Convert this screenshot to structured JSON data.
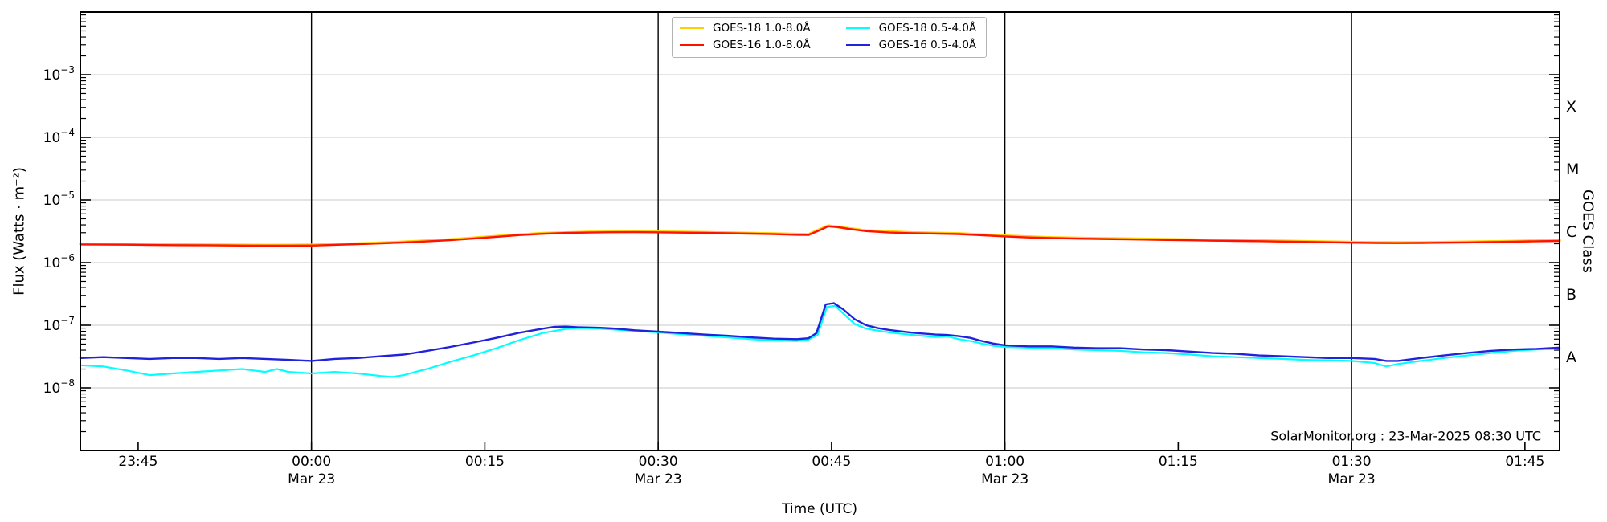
{
  "watermark": {
    "text": "SolarMonitor.org : 23-Mar-2025 08:30 UTC"
  },
  "legend": {
    "items": [
      {
        "label": "GOES-18 1.0-8.0Å",
        "color": "#ffd000"
      },
      {
        "label": "GOES-16 1.0-8.0Å",
        "color": "#ff1100"
      },
      {
        "label": "GOES-18 0.5-4.0Å",
        "color": "#00ffff"
      },
      {
        "label": "GOES-16 0.5-4.0Å",
        "color": "#2222dd"
      }
    ]
  },
  "chart_data": {
    "type": "line",
    "title": "",
    "xlabel": "Time (UTC)",
    "ylabel": "Flux (Watts · m⁻²)",
    "ylabel_right": "GOES Class",
    "x_axis": {
      "unit": "minutes from 23:40 UTC, 22-Mar-2025",
      "range": [
        0,
        128
      ],
      "ticks": [
        {
          "minute": 5,
          "label": "23:45"
        },
        {
          "minute": 20,
          "label": "00:00",
          "date": "Mar 23"
        },
        {
          "minute": 35,
          "label": "00:15"
        },
        {
          "minute": 50,
          "label": "00:30",
          "date": "Mar 23"
        },
        {
          "minute": 65,
          "label": "00:45"
        },
        {
          "minute": 80,
          "label": "01:00",
          "date": "Mar 23"
        },
        {
          "minute": 95,
          "label": "01:15"
        },
        {
          "minute": 110,
          "label": "01:30",
          "date": "Mar 23"
        },
        {
          "minute": 125,
          "label": "01:45"
        }
      ],
      "date_vlines_minutes": [
        20,
        50,
        80,
        110
      ]
    },
    "y_axis": {
      "scale": "log",
      "top": 0.01,
      "bottom": 1e-09,
      "ticks": [
        {
          "exp": -3,
          "label": "10⁻³"
        },
        {
          "exp": -4,
          "label": "10⁻⁴"
        },
        {
          "exp": -5,
          "label": "10⁻⁵"
        },
        {
          "exp": -6,
          "label": "10⁻⁶"
        },
        {
          "exp": -7,
          "label": "10⁻⁷"
        },
        {
          "exp": -8,
          "label": "10⁻⁸"
        }
      ]
    },
    "goes_class": {
      "labels": [
        "X",
        "M",
        "C",
        "B",
        "A"
      ],
      "log_centers": [
        -3.5,
        -4.5,
        -5.5,
        -6.5,
        -7.5
      ]
    },
    "grid": {
      "color": "#c9c9c9",
      "decades": [
        -3,
        -4,
        -5,
        -6,
        -7,
        -8
      ]
    },
    "series": [
      {
        "id": "goes18-long",
        "name": "GOES-18 1.0-8.0Å",
        "color": "#ffd000",
        "width": 3.4,
        "points": [
          [
            0,
            1.99e-06
          ],
          [
            4,
            1.97e-06
          ],
          [
            8,
            1.94e-06
          ],
          [
            12,
            1.92e-06
          ],
          [
            16,
            1.9e-06
          ],
          [
            20,
            1.91e-06
          ],
          [
            24,
            2.01e-06
          ],
          [
            28,
            2.14e-06
          ],
          [
            32,
            2.33e-06
          ],
          [
            36,
            2.63e-06
          ],
          [
            40,
            2.94e-06
          ],
          [
            44,
            3.08e-06
          ],
          [
            48,
            3.12e-06
          ],
          [
            52,
            3.07e-06
          ],
          [
            56,
            3e-06
          ],
          [
            60,
            2.9e-06
          ],
          [
            63,
            2.82e-06
          ],
          [
            64.7,
            3.88e-06
          ],
          [
            66.5,
            3.52e-06
          ],
          [
            68,
            3.24e-06
          ],
          [
            72,
            3.01e-06
          ],
          [
            76,
            2.91e-06
          ],
          [
            80,
            2.67e-06
          ],
          [
            84,
            2.51e-06
          ],
          [
            88,
            2.44e-06
          ],
          [
            92,
            2.38e-06
          ],
          [
            96,
            2.32e-06
          ],
          [
            100,
            2.27e-06
          ],
          [
            104,
            2.21e-06
          ],
          [
            108,
            2.15e-06
          ],
          [
            112,
            2.1e-06
          ],
          [
            116,
            2.1e-06
          ],
          [
            120,
            2.14e-06
          ],
          [
            124,
            2.2e-06
          ],
          [
            128,
            2.27e-06
          ]
        ]
      },
      {
        "id": "goes18-short",
        "name": "GOES-18 0.5-4.0Å",
        "color": "#00ffff",
        "width": 2.2,
        "points": [
          [
            0,
            2.3e-08
          ],
          [
            2,
            2.2e-08
          ],
          [
            4,
            1.9e-08
          ],
          [
            6,
            1.6e-08
          ],
          [
            8,
            1.7e-08
          ],
          [
            10,
            1.8e-08
          ],
          [
            12,
            1.9e-08
          ],
          [
            14,
            2e-08
          ],
          [
            15,
            1.9e-08
          ],
          [
            16,
            1.8e-08
          ],
          [
            17,
            2e-08
          ],
          [
            18,
            1.8e-08
          ],
          [
            20,
            1.7e-08
          ],
          [
            22,
            1.8e-08
          ],
          [
            24,
            1.7e-08
          ],
          [
            26,
            1.55e-08
          ],
          [
            27,
            1.5e-08
          ],
          [
            28,
            1.6e-08
          ],
          [
            29,
            1.8e-08
          ],
          [
            30,
            2e-08
          ],
          [
            32,
            2.6e-08
          ],
          [
            34,
            3.3e-08
          ],
          [
            36,
            4.3e-08
          ],
          [
            38,
            5.8e-08
          ],
          [
            40,
            7.5e-08
          ],
          [
            42,
            8.7e-08
          ],
          [
            43,
            9e-08
          ],
          [
            44,
            8.9e-08
          ],
          [
            45,
            8.8e-08
          ],
          [
            46,
            8.6e-08
          ],
          [
            48,
            8.1e-08
          ],
          [
            50,
            7.7e-08
          ],
          [
            52,
            7.2e-08
          ],
          [
            54,
            6.8e-08
          ],
          [
            56,
            6.4e-08
          ],
          [
            58,
            6e-08
          ],
          [
            60,
            5.7e-08
          ],
          [
            62,
            5.6e-08
          ],
          [
            63,
            5.9e-08
          ],
          [
            63.8,
            7e-08
          ],
          [
            64.6,
            1.95e-07
          ],
          [
            65.3,
            2.05e-07
          ],
          [
            66,
            1.55e-07
          ],
          [
            67,
            1.05e-07
          ],
          [
            68,
            8.8e-08
          ],
          [
            69,
            8.2e-08
          ],
          [
            70,
            7.7e-08
          ],
          [
            72,
            7e-08
          ],
          [
            74,
            6.5e-08
          ],
          [
            75,
            6.7e-08
          ],
          [
            76,
            6e-08
          ],
          [
            77,
            5.6e-08
          ],
          [
            78,
            5.1e-08
          ],
          [
            79,
            4.7e-08
          ],
          [
            80,
            4.5e-08
          ],
          [
            82,
            4.4e-08
          ],
          [
            84,
            4.3e-08
          ],
          [
            86,
            4.1e-08
          ],
          [
            88,
            4e-08
          ],
          [
            90,
            3.9e-08
          ],
          [
            92,
            3.7e-08
          ],
          [
            94,
            3.6e-08
          ],
          [
            96,
            3.4e-08
          ],
          [
            98,
            3.2e-08
          ],
          [
            100,
            3.1e-08
          ],
          [
            102,
            3e-08
          ],
          [
            104,
            2.9e-08
          ],
          [
            106,
            2.8e-08
          ],
          [
            108,
            2.75e-08
          ],
          [
            110,
            2.7e-08
          ],
          [
            112,
            2.5e-08
          ],
          [
            113,
            2.2e-08
          ],
          [
            114,
            2.4e-08
          ],
          [
            116,
            2.7e-08
          ],
          [
            118,
            3e-08
          ],
          [
            120,
            3.3e-08
          ],
          [
            122,
            3.6e-08
          ],
          [
            124,
            3.9e-08
          ],
          [
            126,
            4.1e-08
          ],
          [
            128,
            4.2e-08
          ]
        ]
      },
      {
        "id": "goes16-long",
        "name": "GOES-16 1.0-8.0Å",
        "color": "#ff1100",
        "width": 2.4,
        "points": [
          [
            0,
            1.95e-06
          ],
          [
            2,
            1.94e-06
          ],
          [
            4,
            1.93e-06
          ],
          [
            6,
            1.91e-06
          ],
          [
            8,
            1.9e-06
          ],
          [
            10,
            1.89e-06
          ],
          [
            12,
            1.88e-06
          ],
          [
            14,
            1.87e-06
          ],
          [
            16,
            1.86e-06
          ],
          [
            18,
            1.86e-06
          ],
          [
            20,
            1.87e-06
          ],
          [
            22,
            1.92e-06
          ],
          [
            24,
            1.97e-06
          ],
          [
            26,
            2.03e-06
          ],
          [
            28,
            2.1e-06
          ],
          [
            30,
            2.18e-06
          ],
          [
            32,
            2.28e-06
          ],
          [
            34,
            2.42e-06
          ],
          [
            36,
            2.58e-06
          ],
          [
            38,
            2.75e-06
          ],
          [
            40,
            2.88e-06
          ],
          [
            42,
            2.97e-06
          ],
          [
            44,
            3.02e-06
          ],
          [
            46,
            3.05e-06
          ],
          [
            48,
            3.06e-06
          ],
          [
            50,
            3.04e-06
          ],
          [
            52,
            3.01e-06
          ],
          [
            54,
            2.98e-06
          ],
          [
            56,
            2.94e-06
          ],
          [
            58,
            2.89e-06
          ],
          [
            60,
            2.84e-06
          ],
          [
            62,
            2.78e-06
          ],
          [
            63,
            2.76e-06
          ],
          [
            64,
            3.3e-06
          ],
          [
            64.7,
            3.8e-06
          ],
          [
            65.5,
            3.7e-06
          ],
          [
            66.5,
            3.45e-06
          ],
          [
            68,
            3.18e-06
          ],
          [
            70,
            3.02e-06
          ],
          [
            72,
            2.95e-06
          ],
          [
            74,
            2.9e-06
          ],
          [
            76,
            2.85e-06
          ],
          [
            78,
            2.74e-06
          ],
          [
            80,
            2.62e-06
          ],
          [
            82,
            2.52e-06
          ],
          [
            84,
            2.46e-06
          ],
          [
            86,
            2.42e-06
          ],
          [
            88,
            2.39e-06
          ],
          [
            90,
            2.36e-06
          ],
          [
            92,
            2.33e-06
          ],
          [
            94,
            2.3e-06
          ],
          [
            96,
            2.27e-06
          ],
          [
            98,
            2.24e-06
          ],
          [
            100,
            2.22e-06
          ],
          [
            102,
            2.2e-06
          ],
          [
            104,
            2.17e-06
          ],
          [
            106,
            2.14e-06
          ],
          [
            108,
            2.11e-06
          ],
          [
            110,
            2.08e-06
          ],
          [
            112,
            2.06e-06
          ],
          [
            114,
            2.05e-06
          ],
          [
            116,
            2.06e-06
          ],
          [
            118,
            2.08e-06
          ],
          [
            120,
            2.1e-06
          ],
          [
            122,
            2.13e-06
          ],
          [
            124,
            2.16e-06
          ],
          [
            126,
            2.19e-06
          ],
          [
            128,
            2.22e-06
          ]
        ]
      },
      {
        "id": "goes16-short",
        "name": "GOES-16 0.5-4.0Å",
        "color": "#2222dd",
        "width": 2.4,
        "points": [
          [
            0,
            3e-08
          ],
          [
            2,
            3.1e-08
          ],
          [
            4,
            3e-08
          ],
          [
            6,
            2.9e-08
          ],
          [
            8,
            3e-08
          ],
          [
            10,
            3e-08
          ],
          [
            12,
            2.9e-08
          ],
          [
            14,
            3e-08
          ],
          [
            16,
            2.9e-08
          ],
          [
            18,
            2.8e-08
          ],
          [
            20,
            2.7e-08
          ],
          [
            22,
            2.9e-08
          ],
          [
            24,
            3e-08
          ],
          [
            26,
            3.2e-08
          ],
          [
            28,
            3.4e-08
          ],
          [
            30,
            3.9e-08
          ],
          [
            32,
            4.5e-08
          ],
          [
            34,
            5.3e-08
          ],
          [
            36,
            6.3e-08
          ],
          [
            38,
            7.6e-08
          ],
          [
            40,
            8.8e-08
          ],
          [
            41,
            9.4e-08
          ],
          [
            42,
            9.5e-08
          ],
          [
            43,
            9.3e-08
          ],
          [
            44,
            9.2e-08
          ],
          [
            45,
            9.1e-08
          ],
          [
            46,
            8.9e-08
          ],
          [
            47,
            8.6e-08
          ],
          [
            48,
            8.3e-08
          ],
          [
            50,
            7.9e-08
          ],
          [
            52,
            7.5e-08
          ],
          [
            54,
            7.1e-08
          ],
          [
            56,
            6.8e-08
          ],
          [
            58,
            6.4e-08
          ],
          [
            60,
            6.1e-08
          ],
          [
            62,
            6e-08
          ],
          [
            63,
            6.2e-08
          ],
          [
            63.7,
            7.5e-08
          ],
          [
            64.5,
            2.15e-07
          ],
          [
            65.2,
            2.25e-07
          ],
          [
            66,
            1.8e-07
          ],
          [
            67,
            1.25e-07
          ],
          [
            68,
            1e-07
          ],
          [
            69,
            9e-08
          ],
          [
            70,
            8.4e-08
          ],
          [
            72,
            7.6e-08
          ],
          [
            74,
            7.1e-08
          ],
          [
            75,
            7e-08
          ],
          [
            76,
            6.7e-08
          ],
          [
            77,
            6.3e-08
          ],
          [
            78,
            5.6e-08
          ],
          [
            79,
            5.1e-08
          ],
          [
            80,
            4.8e-08
          ],
          [
            82,
            4.6e-08
          ],
          [
            84,
            4.6e-08
          ],
          [
            86,
            4.4e-08
          ],
          [
            88,
            4.3e-08
          ],
          [
            90,
            4.3e-08
          ],
          [
            92,
            4.1e-08
          ],
          [
            94,
            4e-08
          ],
          [
            96,
            3.8e-08
          ],
          [
            98,
            3.6e-08
          ],
          [
            100,
            3.5e-08
          ],
          [
            102,
            3.3e-08
          ],
          [
            104,
            3.2e-08
          ],
          [
            106,
            3.1e-08
          ],
          [
            108,
            3e-08
          ],
          [
            110,
            3e-08
          ],
          [
            112,
            2.9e-08
          ],
          [
            113,
            2.7e-08
          ],
          [
            114,
            2.7e-08
          ],
          [
            116,
            3e-08
          ],
          [
            118,
            3.3e-08
          ],
          [
            120,
            3.6e-08
          ],
          [
            122,
            3.9e-08
          ],
          [
            124,
            4.1e-08
          ],
          [
            126,
            4.2e-08
          ],
          [
            128,
            4.4e-08
          ]
        ]
      }
    ]
  }
}
